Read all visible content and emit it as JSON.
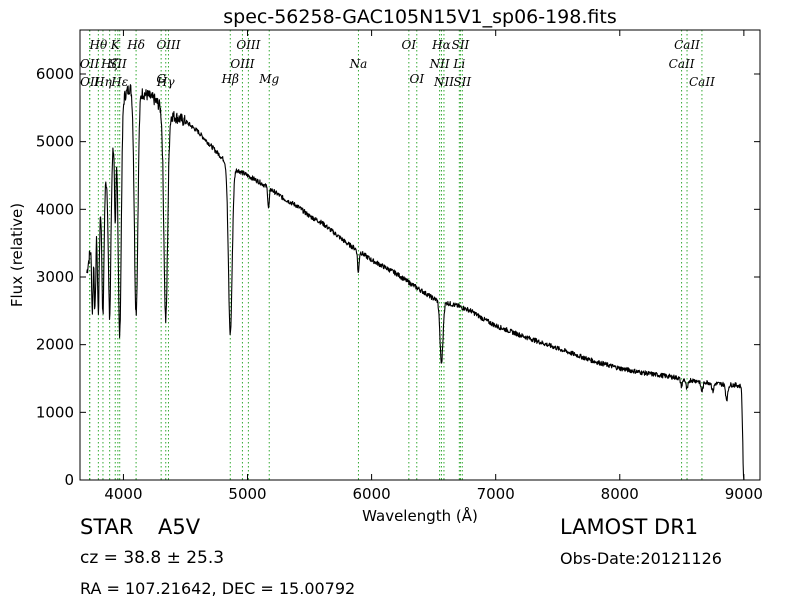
{
  "header": {
    "title": "spec-56258-GAC105N15V1_sp06-198.fits"
  },
  "info": {
    "object_class": "STAR",
    "subclass": "A5V",
    "cz": "cz = 38.8 ± 25.3",
    "radec": "RA = 107.21642, DEC = 15.00792",
    "survey": "LAMOST DR1",
    "obs_date": "Obs-Date:20121126"
  },
  "chart_data": {
    "type": "line",
    "title": "spec-56258-GAC105N15V1_sp06-198.fits",
    "xlabel": "Wavelength (Å)",
    "ylabel": "Flux (relative)",
    "xlim": [
      3650,
      9130
    ],
    "ylim": [
      0,
      6650
    ],
    "grid": false,
    "xticks": [
      4000,
      5000,
      6000,
      7000,
      8000,
      9000
    ],
    "yticks": [
      0,
      1000,
      2000,
      3000,
      4000,
      5000,
      6000
    ],
    "line_color": "#000000",
    "marker_color": "#33aa33",
    "continuum": [
      [
        3700,
        3000
      ],
      [
        3750,
        3600
      ],
      [
        3800,
        3950
      ],
      [
        3850,
        4350
      ],
      [
        3900,
        4800
      ],
      [
        3950,
        5300
      ],
      [
        4000,
        5650
      ],
      [
        4050,
        5800
      ],
      [
        4100,
        5780
      ],
      [
        4150,
        5720
      ],
      [
        4200,
        5680
      ],
      [
        4250,
        5620
      ],
      [
        4300,
        5520
      ],
      [
        4350,
        5450
      ],
      [
        4400,
        5380
      ],
      [
        4500,
        5300
      ],
      [
        4600,
        5150
      ],
      [
        4700,
        4950
      ],
      [
        4800,
        4750
      ],
      [
        4900,
        4600
      ],
      [
        5000,
        4500
      ],
      [
        5100,
        4400
      ],
      [
        5200,
        4280
      ],
      [
        5300,
        4150
      ],
      [
        5400,
        4050
      ],
      [
        5500,
        3900
      ],
      [
        5600,
        3800
      ],
      [
        5700,
        3650
      ],
      [
        5800,
        3500
      ],
      [
        5900,
        3380
      ],
      [
        6000,
        3250
      ],
      [
        6100,
        3150
      ],
      [
        6200,
        3050
      ],
      [
        6300,
        2920
      ],
      [
        6400,
        2800
      ],
      [
        6500,
        2680
      ],
      [
        6600,
        2620
      ],
      [
        6700,
        2570
      ],
      [
        6800,
        2500
      ],
      [
        6900,
        2380
      ],
      [
        7000,
        2280
      ],
      [
        7200,
        2140
      ],
      [
        7400,
        2010
      ],
      [
        7600,
        1880
      ],
      [
        7800,
        1750
      ],
      [
        8000,
        1650
      ],
      [
        8200,
        1580
      ],
      [
        8400,
        1530
      ],
      [
        8600,
        1470
      ],
      [
        8800,
        1420
      ],
      [
        8950,
        1400
      ],
      [
        8980,
        1380
      ],
      [
        9000,
        0
      ]
    ],
    "absorption_lines": [
      {
        "center": 3750,
        "depth": 1100,
        "width": 6
      },
      {
        "center": 3771,
        "depth": 1250,
        "width": 6
      },
      {
        "center": 3798,
        "depth": 1450,
        "width": 7
      },
      {
        "center": 3835,
        "depth": 1800,
        "width": 8
      },
      {
        "center": 3889,
        "depth": 2300,
        "width": 10
      },
      {
        "center": 3934,
        "depth": 1400,
        "width": 6
      },
      {
        "center": 3970,
        "depth": 3300,
        "width": 12
      },
      {
        "center": 4102,
        "depth": 3300,
        "width": 14
      },
      {
        "center": 4341,
        "depth": 3100,
        "width": 15
      },
      {
        "center": 4861,
        "depth": 2500,
        "width": 15
      },
      {
        "center": 5170,
        "depth": 300,
        "width": 6
      },
      {
        "center": 5893,
        "depth": 330,
        "width": 6
      },
      {
        "center": 6563,
        "depth": 920,
        "width": 12
      },
      {
        "center": 8498,
        "depth": 110,
        "width": 8
      },
      {
        "center": 8542,
        "depth": 150,
        "width": 9
      },
      {
        "center": 8662,
        "depth": 140,
        "width": 9
      },
      {
        "center": 8750,
        "depth": 120,
        "width": 8
      },
      {
        "center": 8862,
        "depth": 220,
        "width": 9
      }
    ],
    "line_markers": [
      {
        "label": "OII",
        "x": 3727,
        "row": 2
      },
      {
        "label": "OII",
        "x": 3729,
        "row": 3
      },
      {
        "label": "Hθ",
        "x": 3798,
        "row": 1
      },
      {
        "label": "Hη",
        "x": 3835,
        "row": 3
      },
      {
        "label": "Hζ",
        "x": 3889,
        "row": 2
      },
      {
        "label": "K",
        "x": 3934,
        "row": 1
      },
      {
        "label": "SII",
        "x": 3955,
        "row": 2
      },
      {
        "label": "Hε",
        "x": 3970,
        "row": 3
      },
      {
        "label": "Hδ",
        "x": 4102,
        "row": 1
      },
      {
        "label": "G",
        "x": 4304,
        "row": 4
      },
      {
        "label": "Hγ",
        "x": 4341,
        "row": 3
      },
      {
        "label": "OIII",
        "x": 4363,
        "row": 1
      },
      {
        "label": "Hβ",
        "x": 4861,
        "row": 4
      },
      {
        "label": "OIII",
        "x": 4959,
        "row": 2
      },
      {
        "label": "OIII",
        "x": 5007,
        "row": 1
      },
      {
        "label": "Mg",
        "x": 5175,
        "row": 4
      },
      {
        "label": "Na",
        "x": 5894,
        "row": 2
      },
      {
        "label": "OI",
        "x": 6300,
        "row": 1
      },
      {
        "label": "OI",
        "x": 6364,
        "row": 4
      },
      {
        "label": "NII",
        "x": 6548,
        "row": 2
      },
      {
        "label": "Hα",
        "x": 6563,
        "row": 1
      },
      {
        "label": "NII",
        "x": 6583,
        "row": 3
      },
      {
        "label": "Li",
        "x": 6707,
        "row": 2
      },
      {
        "label": "SII",
        "x": 6716,
        "row": 1
      },
      {
        "label": "SII",
        "x": 6731,
        "row": 3
      },
      {
        "label": "CaII",
        "x": 8498,
        "row": 2
      },
      {
        "label": "CaII",
        "x": 8542,
        "row": 1
      },
      {
        "label": "CaII",
        "x": 8662,
        "row": 3
      }
    ]
  }
}
